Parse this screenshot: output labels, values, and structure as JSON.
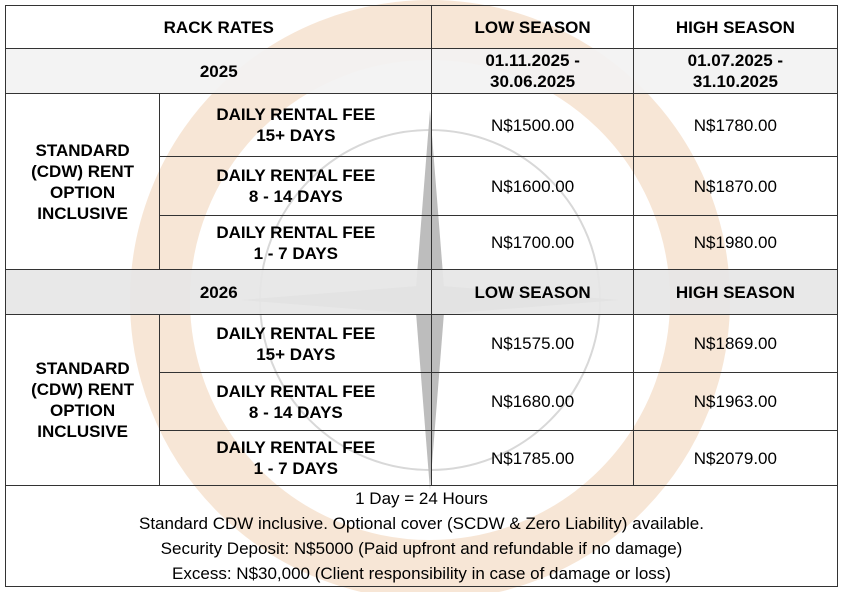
{
  "table": {
    "header": [
      "RACK RATES",
      "LOW SEASON",
      "HIGH SEASON"
    ],
    "blocks": [
      {
        "year": "2025",
        "low_period": "01.11.2025 - 30.06.2025",
        "high_period": "01.07.2025 - 31.10.2025",
        "option": "STANDARD (CDW) RENT OPTION INCLUSIVE",
        "rows": [
          {
            "label": [
              "DAILY RENTAL FEE",
              "15+ DAYS"
            ],
            "low": "N$1500.00",
            "high": "N$1780.00"
          },
          {
            "label": [
              "DAILY RENTAL FEE",
              "8 - 14 DAYS"
            ],
            "low": "N$1600.00",
            "high": "N$1870.00"
          },
          {
            "label": [
              "DAILY RENTAL FEE",
              "1 - 7 DAYS"
            ],
            "low": "N$1700.00",
            "high": "N$1980.00"
          }
        ]
      },
      {
        "year": "2026",
        "low_period": "LOW SEASON",
        "high_period": "HIGH SEASON",
        "option": "STANDARD (CDW) RENT OPTION INCLUSIVE",
        "rows": [
          {
            "label": [
              "DAILY RENTAL FEE",
              "15+ DAYS"
            ],
            "low": "N$1575.00",
            "high": "N$1869.00"
          },
          {
            "label": [
              "DAILY RENTAL FEE",
              "8 - 14 DAYS"
            ],
            "low": "N$1680.00",
            "high": "N$1963.00"
          },
          {
            "label": [
              "DAILY RENTAL FEE",
              "1 - 7 DAYS"
            ],
            "low": "N$1785.00",
            "high": "N$2079.00"
          }
        ]
      }
    ],
    "notes": [
      "1 Day = 24 Hours",
      "Standard CDW inclusive. Optional cover (SCDW & Zero Liability) available.",
      "Security Deposit:  N$5000 (Paid upfront and refundable if no damage)",
      "Excess: N$30,000 (Client responsibility in case of damage or loss)"
    ]
  }
}
